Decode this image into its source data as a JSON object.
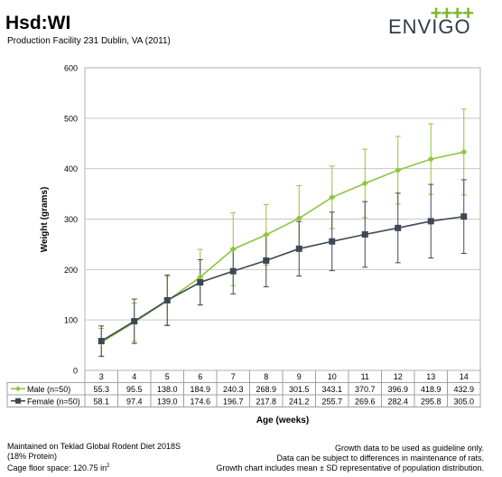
{
  "header": {
    "title": "Hsd:WI",
    "subtitle": "Production Facility 231 Dublin, VA (2011)",
    "brand": "ENVIGO",
    "brand_mark": "++++"
  },
  "chart_data": {
    "type": "line",
    "ylabel": "Weight (grams)",
    "xlabel": "Age (weeks)",
    "ylim": [
      0,
      600
    ],
    "yticks": [
      0,
      100,
      200,
      300,
      400,
      500,
      600
    ],
    "grid": true,
    "categories": [
      "3",
      "4",
      "5",
      "6",
      "7",
      "8",
      "9",
      "10",
      "11",
      "12",
      "13",
      "14"
    ],
    "series": [
      {
        "name": "Male (n=50)",
        "color": "#8dc63f",
        "marker": "diamond",
        "values": [
          55.3,
          95.5,
          138.0,
          184.9,
          240.3,
          268.9,
          301.5,
          343.1,
          370.7,
          396.9,
          418.9,
          432.9
        ],
        "labels": [
          "55.3",
          "95.5",
          "138.0",
          "184.9",
          "240.3",
          "268.9",
          "301.5",
          "343.1",
          "370.7",
          "396.9",
          "418.9",
          "432.9"
        ],
        "sd": [
          28,
          38,
          48,
          55,
          72,
          60,
          65,
          62,
          68,
          67,
          70,
          85
        ]
      },
      {
        "name": "Female (n=50)",
        "color": "#3d4853",
        "marker": "square",
        "values": [
          58.1,
          97.4,
          139.0,
          174.6,
          196.7,
          217.8,
          241.2,
          255.7,
          269.6,
          282.4,
          295.8,
          305.0
        ],
        "labels": [
          "58.1",
          "97.4",
          "139.0",
          "174.6",
          "196.7",
          "217.8",
          "241.2",
          "255.7",
          "269.6",
          "282.4",
          "295.8",
          "305.0"
        ],
        "sd": [
          30,
          44,
          50,
          45,
          45,
          52,
          54,
          58,
          65,
          69,
          73,
          73
        ]
      }
    ]
  },
  "footer": {
    "left": [
      "Maintained on Teklad Global Rodent Diet 2018S",
      "(18% Protein)",
      "Cage floor space: 120.75 in"
    ],
    "left_sup": "2",
    "right": [
      "Growth data to be used as guideline only.",
      "Data can be subject to differences in maintenance of rats.",
      "Growth chart includes mean ± SD representative of population distribution."
    ]
  }
}
